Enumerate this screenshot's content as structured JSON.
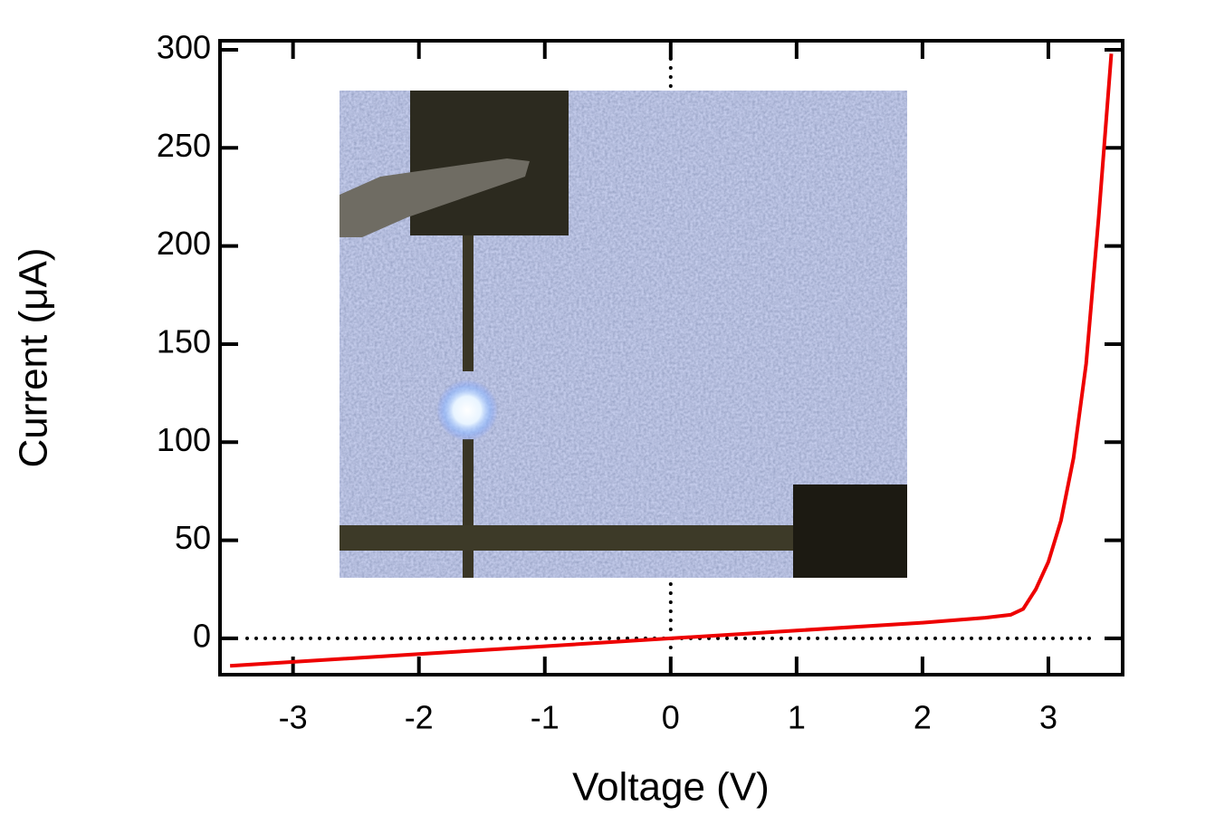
{
  "chart_data": {
    "type": "line",
    "xlabel": "Voltage (V)",
    "ylabel": "Current (μA)",
    "x": [
      -3.5,
      -3,
      -2,
      -1,
      0,
      1,
      2,
      2.5,
      2.7,
      2.8,
      2.9,
      3.0,
      3.1,
      3.2,
      3.3,
      3.4,
      3.5
    ],
    "values": [
      -14,
      -12,
      -8,
      -4,
      0,
      4,
      8,
      10.5,
      12,
      15,
      25,
      39,
      60,
      92,
      140,
      215,
      298
    ],
    "color": "#ee0000",
    "xlim": [
      -3.58,
      3.59
    ],
    "ylim": [
      -18.5,
      304.6
    ],
    "xticks": [
      -3,
      -2,
      -1,
      0,
      1,
      2,
      3
    ],
    "yticks": [
      0,
      50,
      100,
      150,
      200,
      250,
      300
    ],
    "zero_lines": true,
    "mirror_ticks": true
  }
}
